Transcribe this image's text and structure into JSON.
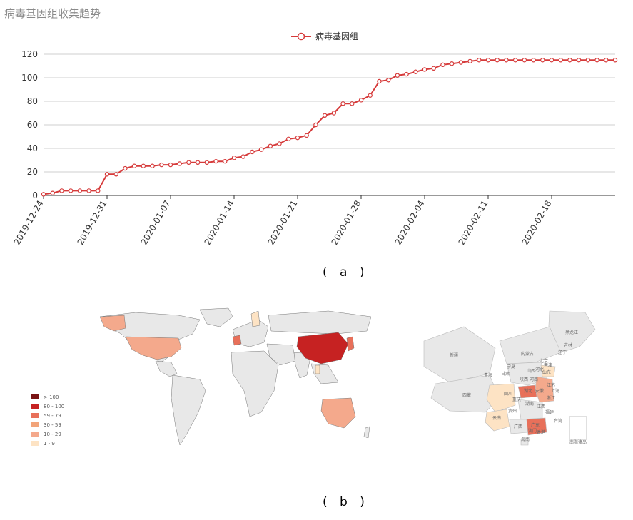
{
  "page": {
    "title": "病毒基因组收集趋势",
    "caption_a": "( a )",
    "caption_b": "( b )"
  },
  "chart_data": {
    "type": "line",
    "title": "病毒基因组收集趋势",
    "legend": "top-center",
    "series": [
      {
        "name": "病毒基因组",
        "color": "#d63a3a",
        "x": [
          "2019-12-24",
          "2019-12-25",
          "2019-12-26",
          "2019-12-27",
          "2019-12-28",
          "2019-12-29",
          "2019-12-30",
          "2019-12-31",
          "2020-01-01",
          "2020-01-02",
          "2020-01-03",
          "2020-01-04",
          "2020-01-05",
          "2020-01-06",
          "2020-01-07",
          "2020-01-08",
          "2020-01-09",
          "2020-01-10",
          "2020-01-11",
          "2020-01-12",
          "2020-01-13",
          "2020-01-14",
          "2020-01-15",
          "2020-01-16",
          "2020-01-17",
          "2020-01-18",
          "2020-01-19",
          "2020-01-20",
          "2020-01-21",
          "2020-01-22",
          "2020-01-23",
          "2020-01-24",
          "2020-01-25",
          "2020-01-26",
          "2020-01-27",
          "2020-01-28",
          "2020-01-29",
          "2020-01-30",
          "2020-01-31",
          "2020-02-01",
          "2020-02-02",
          "2020-02-03",
          "2020-02-04",
          "2020-02-05",
          "2020-02-06",
          "2020-02-07",
          "2020-02-08",
          "2020-02-09",
          "2020-02-10",
          "2020-02-11",
          "2020-02-12",
          "2020-02-13",
          "2020-02-14",
          "2020-02-15",
          "2020-02-16",
          "2020-02-17",
          "2020-02-18",
          "2020-02-19",
          "2020-02-20",
          "2020-02-21",
          "2020-02-22",
          "2020-02-23",
          "2020-02-24",
          "2020-02-25"
        ],
        "values": [
          1,
          2,
          4,
          4,
          4,
          4,
          4,
          18,
          18,
          23,
          25,
          25,
          25,
          26,
          26,
          27,
          28,
          28,
          28,
          29,
          29,
          32,
          33,
          37,
          39,
          42,
          44,
          48,
          49,
          51,
          60,
          68,
          70,
          78,
          78,
          81,
          85,
          97,
          98,
          102,
          103,
          105,
          107,
          108,
          111,
          112,
          113,
          114,
          115,
          115,
          115,
          115,
          115,
          115,
          115,
          115,
          115,
          115,
          115,
          115,
          115,
          115,
          115,
          115
        ]
      }
    ],
    "x_tick_labels": [
      "2019-12-24",
      "2019-12-31",
      "2020-01-07",
      "2020-01-14",
      "2020-01-21",
      "2020-01-28",
      "2020-02-04",
      "2020-02-11",
      "2020-02-18"
    ],
    "y_tick_labels": [
      "0",
      "20",
      "40",
      "60",
      "80",
      "100",
      "120"
    ],
    "ylim": [
      0,
      120
    ],
    "grid": true
  },
  "maps": {
    "legend": [
      {
        "label": "> 100",
        "color": "#7a1414"
      },
      {
        "label": "80 - 100",
        "color": "#c62222"
      },
      {
        "label": "59 - 79",
        "color": "#e8705a"
      },
      {
        "label": "30 - 59",
        "color": "#f2a47a"
      },
      {
        "label": "10 - 29",
        "color": "#f4a98c"
      },
      {
        "label": "1 - 9",
        "color": "#fde3c4"
      }
    ],
    "base_color": "#e8e8e8",
    "china_labels": [
      "黑龙江",
      "吉林",
      "辽宁",
      "内蒙古",
      "北京",
      "天津",
      "河北",
      "山西",
      "山东",
      "新疆",
      "宁夏",
      "甘肃",
      "青海",
      "陕西",
      "河南",
      "江苏",
      "西藏",
      "四川",
      "重庆",
      "湖北",
      "安徽",
      "上海",
      "浙江",
      "湖南",
      "江西",
      "福建",
      "云南",
      "贵州",
      "广西",
      "广东",
      "台湾",
      "香港",
      "澳门",
      "海南",
      "南海诸岛"
    ]
  }
}
